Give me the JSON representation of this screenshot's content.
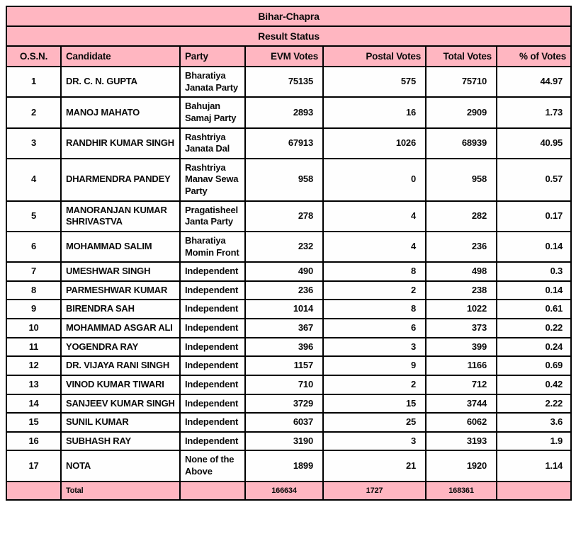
{
  "header": {
    "title": "Bihar-Chapra",
    "status": "Result Status"
  },
  "columns": [
    "O.S.N.",
    "Candidate",
    "Party",
    "EVM Votes",
    "Postal Votes",
    "Total Votes",
    "% of Votes"
  ],
  "rows": [
    {
      "osn": "1",
      "candidate": "DR. C. N. GUPTA",
      "party": "Bharatiya Janata Party",
      "evm": "75135",
      "postal": "575",
      "total": "75710",
      "pct": "44.97"
    },
    {
      "osn": "2",
      "candidate": "MANOJ MAHATO",
      "party": "Bahujan Samaj Party",
      "evm": "2893",
      "postal": "16",
      "total": "2909",
      "pct": "1.73"
    },
    {
      "osn": "3",
      "candidate": "RANDHIR KUMAR SINGH",
      "party": "Rashtriya Janata Dal",
      "evm": "67913",
      "postal": "1026",
      "total": "68939",
      "pct": "40.95"
    },
    {
      "osn": "4",
      "candidate": "DHARMENDRA PANDEY",
      "party": "Rashtriya Manav Sewa Party",
      "evm": "958",
      "postal": "0",
      "total": "958",
      "pct": "0.57"
    },
    {
      "osn": "5",
      "candidate": "MANORANJAN KUMAR SHRIVASTVA",
      "party": "Pragatisheel Janta Party",
      "evm": "278",
      "postal": "4",
      "total": "282",
      "pct": "0.17"
    },
    {
      "osn": "6",
      "candidate": "MOHAMMAD SALIM",
      "party": "Bharatiya Momin Front",
      "evm": "232",
      "postal": "4",
      "total": "236",
      "pct": "0.14"
    },
    {
      "osn": "7",
      "candidate": "UMESHWAR SINGH",
      "party": "Independent",
      "evm": "490",
      "postal": "8",
      "total": "498",
      "pct": "0.3"
    },
    {
      "osn": "8",
      "candidate": "PARMESHWAR KUMAR",
      "party": "Independent",
      "evm": "236",
      "postal": "2",
      "total": "238",
      "pct": "0.14"
    },
    {
      "osn": "9",
      "candidate": "BIRENDRA SAH",
      "party": "Independent",
      "evm": "1014",
      "postal": "8",
      "total": "1022",
      "pct": "0.61"
    },
    {
      "osn": "10",
      "candidate": "MOHAMMAD ASGAR ALI",
      "party": "Independent",
      "evm": "367",
      "postal": "6",
      "total": "373",
      "pct": "0.22"
    },
    {
      "osn": "11",
      "candidate": "YOGENDRA RAY",
      "party": "Independent",
      "evm": "396",
      "postal": "3",
      "total": "399",
      "pct": "0.24"
    },
    {
      "osn": "12",
      "candidate": "DR. VIJAYA RANI SINGH",
      "party": "Independent",
      "evm": "1157",
      "postal": "9",
      "total": "1166",
      "pct": "0.69"
    },
    {
      "osn": "13",
      "candidate": "VINOD KUMAR TIWARI",
      "party": "Independent",
      "evm": "710",
      "postal": "2",
      "total": "712",
      "pct": "0.42"
    },
    {
      "osn": "14",
      "candidate": "SANJEEV KUMAR SINGH",
      "party": "Independent",
      "evm": "3729",
      "postal": "15",
      "total": "3744",
      "pct": "2.22"
    },
    {
      "osn": "15",
      "candidate": "SUNIL KUMAR",
      "party": "Independent",
      "evm": "6037",
      "postal": "25",
      "total": "6062",
      "pct": "3.6"
    },
    {
      "osn": "16",
      "candidate": "SUBHASH RAY",
      "party": "Independent",
      "evm": "3190",
      "postal": "3",
      "total": "3193",
      "pct": "1.9"
    },
    {
      "osn": "17",
      "candidate": "NOTA",
      "party": "None of the Above",
      "evm": "1899",
      "postal": "21",
      "total": "1920",
      "pct": "1.14"
    }
  ],
  "total_row": {
    "label": "Total",
    "evm": "166634",
    "postal": "1727",
    "total": "168361"
  },
  "colors": {
    "header_pink": "#FFB6C1",
    "border_black": "#000000",
    "row_white": "#FEFEFE"
  }
}
